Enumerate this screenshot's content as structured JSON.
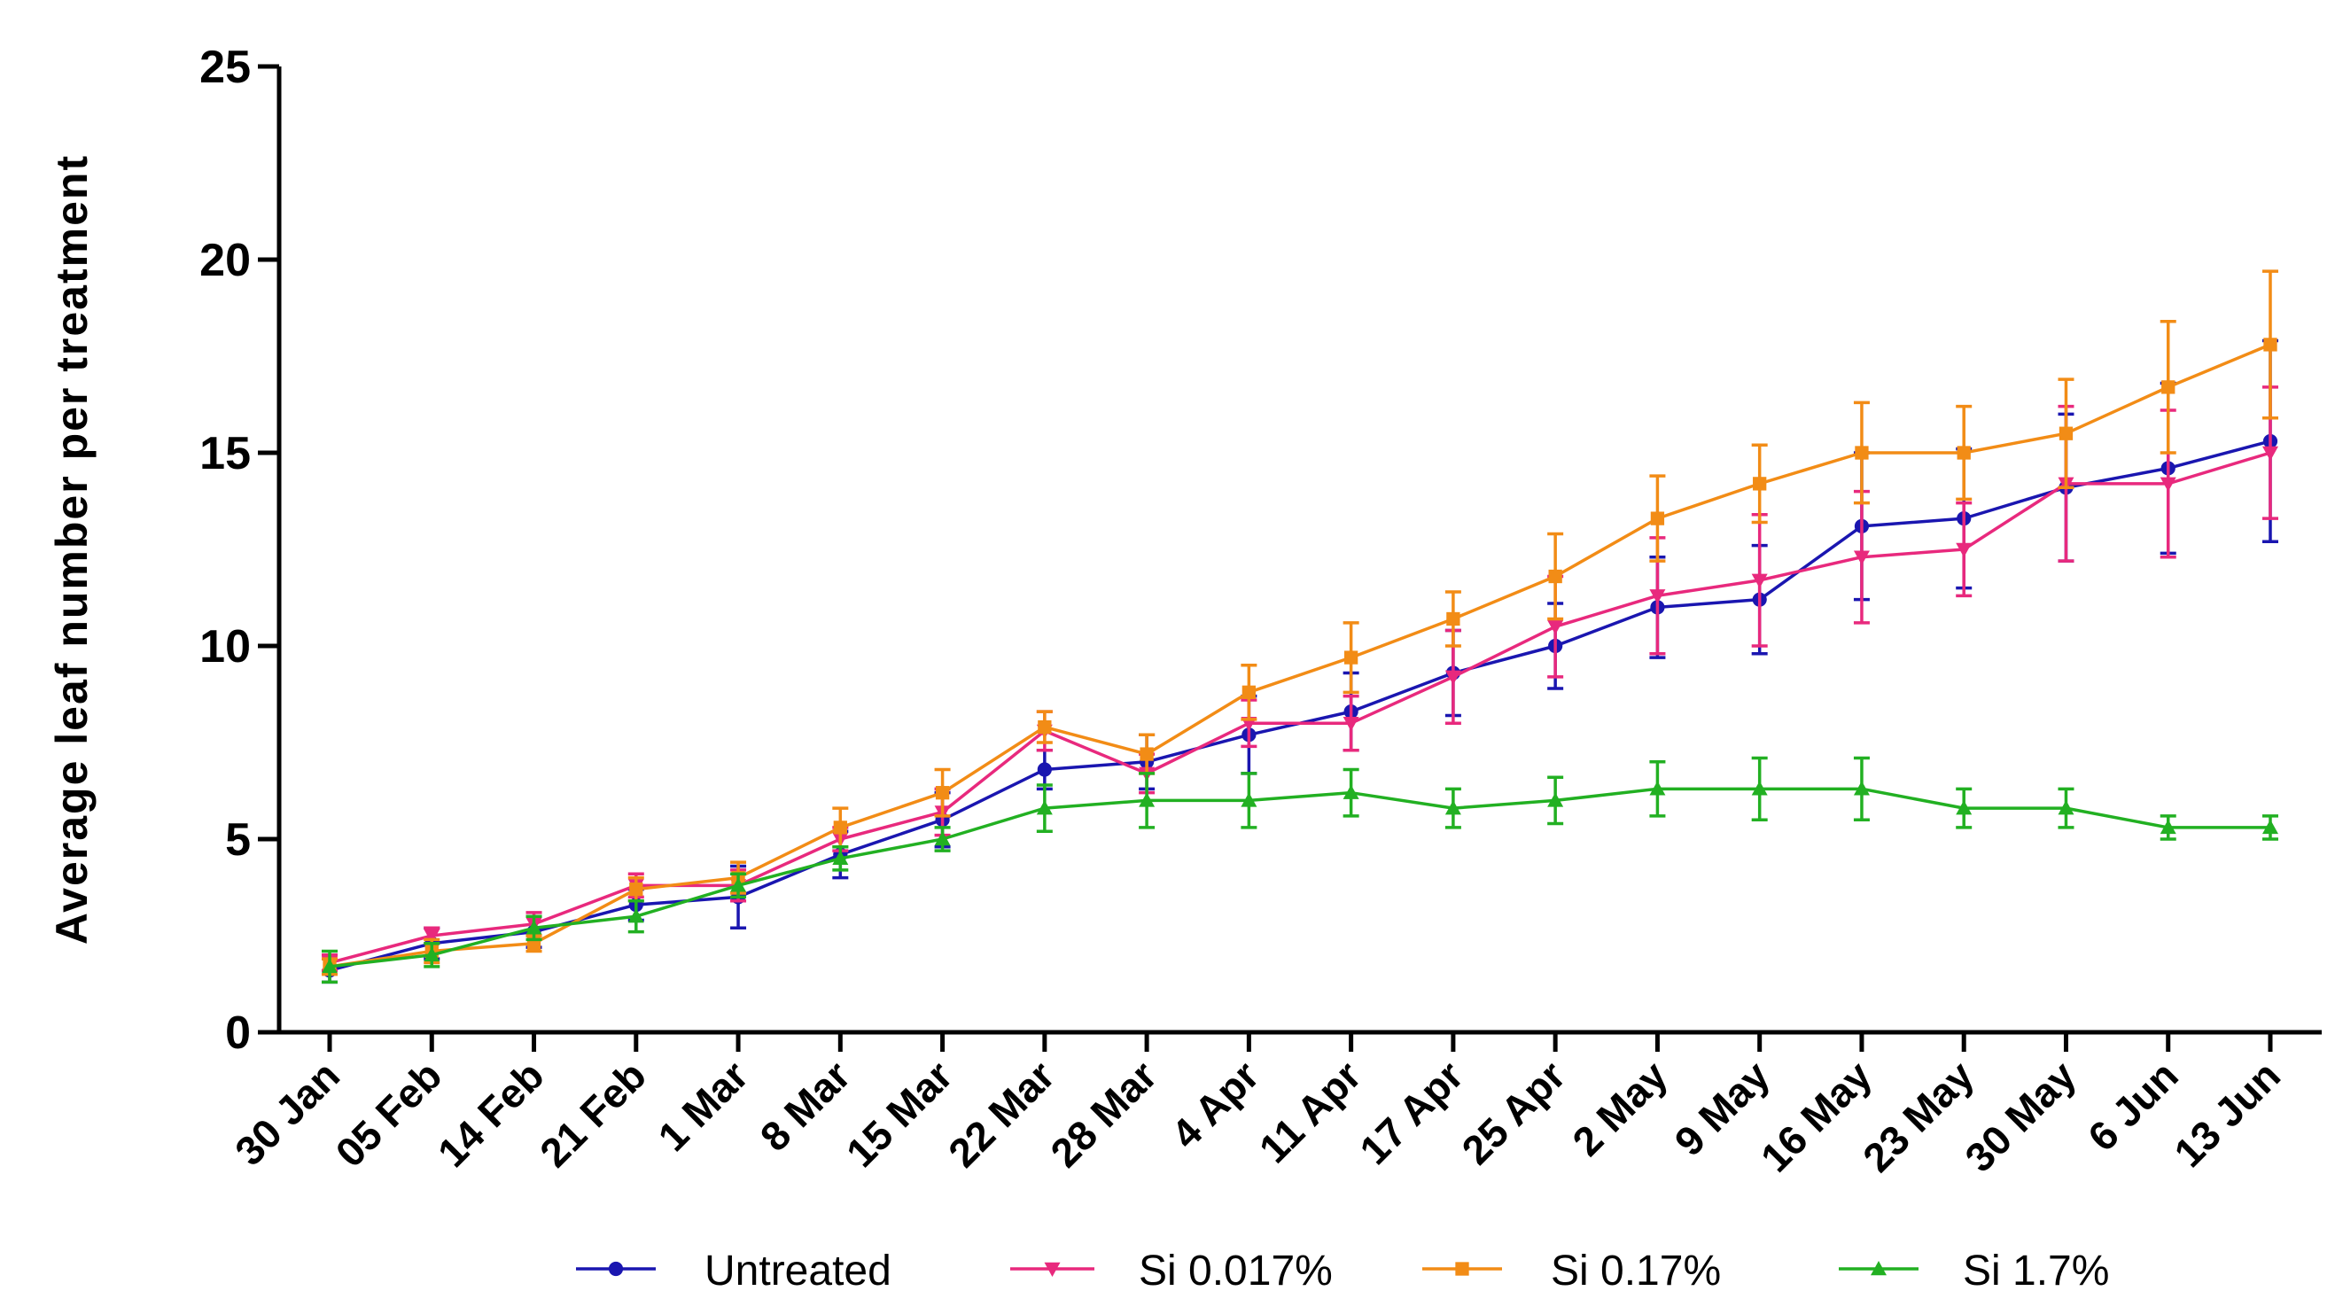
{
  "chart_data": {
    "type": "line",
    "title": "",
    "xlabel": "",
    "ylabel": "Average leaf number per treatment",
    "ylim": [
      0,
      25
    ],
    "yticks": [
      0,
      5,
      10,
      15,
      20,
      25
    ],
    "grid": false,
    "legend_position": "bottom",
    "categories": [
      "30 Jan",
      "05 Feb",
      "14 Feb",
      "21 Feb",
      "1 Mar",
      "8 Mar",
      "15 Mar",
      "22 Mar",
      "28 Mar",
      "4 Apr",
      "11 Apr",
      "17 Apr",
      "25 Apr",
      "2 May",
      "9 May",
      "16 May",
      "23 May",
      "30 May",
      "6 Jun",
      "13 Jun"
    ],
    "series": [
      {
        "name": "Untreated",
        "color": "#1a16b0",
        "marker": "circle",
        "values": [
          1.6,
          2.3,
          2.6,
          3.3,
          3.5,
          4.6,
          5.5,
          6.8,
          7.0,
          7.7,
          8.3,
          9.3,
          10.0,
          11.0,
          11.2,
          13.1,
          13.3,
          14.1,
          14.6,
          15.3
        ],
        "errors": [
          0.3,
          0.4,
          0.4,
          0.4,
          0.8,
          0.6,
          0.7,
          0.5,
          0.7,
          1.0,
          1.0,
          1.1,
          1.1,
          1.3,
          1.4,
          1.9,
          1.8,
          1.9,
          2.2,
          2.6
        ]
      },
      {
        "name": "Si 0.017%",
        "color": "#e8297d",
        "marker": "triangle-down",
        "values": [
          1.8,
          2.5,
          2.8,
          3.8,
          3.8,
          5.0,
          5.7,
          7.8,
          6.7,
          8.0,
          8.0,
          9.2,
          10.5,
          11.3,
          11.7,
          12.3,
          12.5,
          14.2,
          14.2,
          15.0
        ],
        "errors": [
          0.2,
          0.2,
          0.3,
          0.3,
          0.4,
          0.3,
          0.6,
          0.5,
          0.5,
          0.6,
          0.7,
          1.2,
          1.3,
          1.5,
          1.7,
          1.7,
          1.2,
          2.0,
          1.9,
          1.7
        ]
      },
      {
        "name": "Si 0.17%",
        "color": "#f28c16",
        "marker": "square",
        "values": [
          1.7,
          2.1,
          2.3,
          3.7,
          4.0,
          5.3,
          6.2,
          7.9,
          7.2,
          8.8,
          9.7,
          10.7,
          11.8,
          13.3,
          14.2,
          15.0,
          15.0,
          15.5,
          16.7,
          17.8
        ],
        "errors": [
          0.2,
          0.3,
          0.2,
          0.3,
          0.4,
          0.5,
          0.6,
          0.4,
          0.5,
          0.7,
          0.9,
          0.7,
          1.1,
          1.1,
          1.0,
          1.3,
          1.2,
          1.4,
          1.7,
          1.9
        ]
      },
      {
        "name": "Si 1.7%",
        "color": "#22b022",
        "marker": "triangle-up",
        "values": [
          1.7,
          2.0,
          2.7,
          3.0,
          3.8,
          4.5,
          5.0,
          5.8,
          6.0,
          6.0,
          6.2,
          5.8,
          6.0,
          6.3,
          6.3,
          6.3,
          5.8,
          5.8,
          5.3,
          5.3
        ],
        "errors": [
          0.4,
          0.3,
          0.3,
          0.4,
          0.3,
          0.3,
          0.3,
          0.6,
          0.7,
          0.7,
          0.6,
          0.5,
          0.6,
          0.7,
          0.8,
          0.8,
          0.5,
          0.5,
          0.3,
          0.3
        ]
      }
    ]
  }
}
